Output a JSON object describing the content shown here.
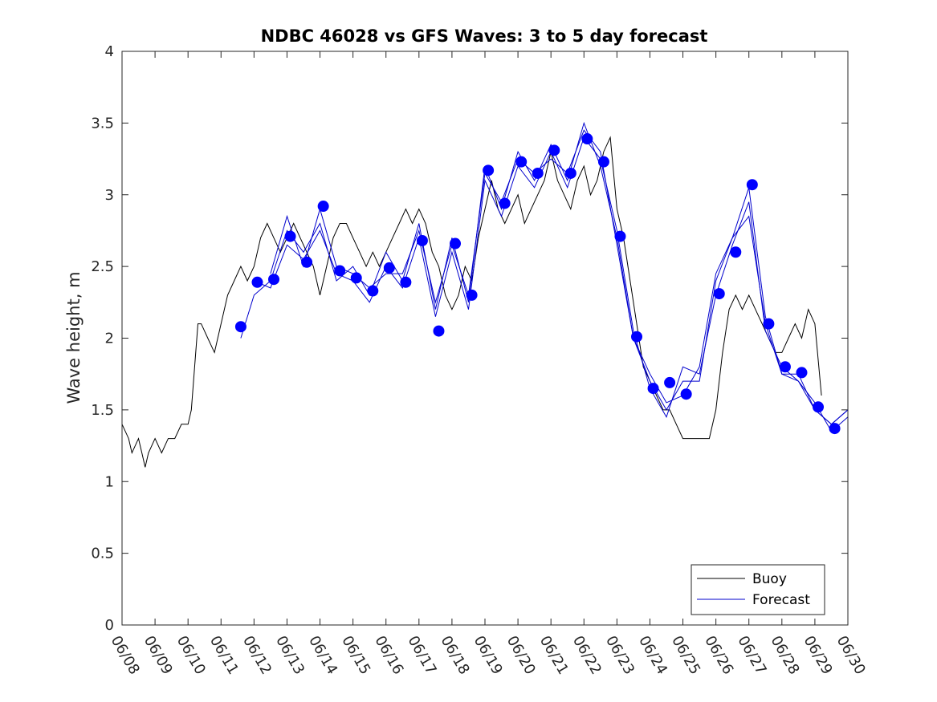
{
  "chart_data": {
    "type": "line",
    "title": "NDBC 46028 vs GFS Waves: 3 to 5 day forecast",
    "xlabel": "",
    "ylabel": "Wave height, m",
    "xlim": [
      "06/08",
      "06/30"
    ],
    "ylim": [
      0,
      4
    ],
    "x_tick_labels": [
      "06/08",
      "06/09",
      "06/10",
      "06/11",
      "06/12",
      "06/13",
      "06/14",
      "06/15",
      "06/16",
      "06/17",
      "06/18",
      "06/19",
      "06/20",
      "06/21",
      "06/22",
      "06/23",
      "06/24",
      "06/25",
      "06/26",
      "06/27",
      "06/28",
      "06/29",
      "06/30"
    ],
    "y_tick_labels": [
      "0",
      "0.5",
      "1",
      "1.5",
      "2",
      "2.5",
      "3",
      "3.5",
      "4"
    ],
    "grid": false,
    "legend_position": "bottom-right",
    "colors": {
      "buoy": "#000000",
      "forecast": "#0000cd",
      "markers": "#0000ff"
    },
    "series": [
      {
        "name": "Buoy",
        "x_unit": "day of June",
        "points": [
          [
            8.0,
            1.4
          ],
          [
            8.2,
            1.3
          ],
          [
            8.3,
            1.2
          ],
          [
            8.5,
            1.3
          ],
          [
            8.6,
            1.2
          ],
          [
            8.7,
            1.1
          ],
          [
            8.8,
            1.2
          ],
          [
            9.0,
            1.3
          ],
          [
            9.2,
            1.2
          ],
          [
            9.4,
            1.3
          ],
          [
            9.6,
            1.3
          ],
          [
            9.8,
            1.4
          ],
          [
            10.0,
            1.4
          ],
          [
            10.1,
            1.5
          ],
          [
            10.2,
            1.8
          ],
          [
            10.3,
            2.1
          ],
          [
            10.4,
            2.1
          ],
          [
            10.6,
            2.0
          ],
          [
            10.8,
            1.9
          ],
          [
            11.0,
            2.1
          ],
          [
            11.2,
            2.3
          ],
          [
            11.4,
            2.4
          ],
          [
            11.6,
            2.5
          ],
          [
            11.8,
            2.4
          ],
          [
            12.0,
            2.5
          ],
          [
            12.2,
            2.7
          ],
          [
            12.4,
            2.8
          ],
          [
            12.6,
            2.7
          ],
          [
            12.8,
            2.6
          ],
          [
            13.0,
            2.7
          ],
          [
            13.2,
            2.8
          ],
          [
            13.4,
            2.7
          ],
          [
            13.6,
            2.6
          ],
          [
            13.8,
            2.5
          ],
          [
            14.0,
            2.3
          ],
          [
            14.2,
            2.5
          ],
          [
            14.4,
            2.7
          ],
          [
            14.6,
            2.8
          ],
          [
            14.8,
            2.8
          ],
          [
            15.0,
            2.7
          ],
          [
            15.2,
            2.6
          ],
          [
            15.4,
            2.5
          ],
          [
            15.6,
            2.6
          ],
          [
            15.8,
            2.5
          ],
          [
            16.0,
            2.6
          ],
          [
            16.2,
            2.7
          ],
          [
            16.4,
            2.8
          ],
          [
            16.6,
            2.9
          ],
          [
            16.8,
            2.8
          ],
          [
            17.0,
            2.9
          ],
          [
            17.2,
            2.8
          ],
          [
            17.4,
            2.6
          ],
          [
            17.6,
            2.5
          ],
          [
            17.8,
            2.3
          ],
          [
            18.0,
            2.2
          ],
          [
            18.2,
            2.3
          ],
          [
            18.4,
            2.5
          ],
          [
            18.6,
            2.4
          ],
          [
            18.8,
            2.7
          ],
          [
            19.0,
            2.9
          ],
          [
            19.2,
            3.1
          ],
          [
            19.4,
            2.9
          ],
          [
            19.6,
            2.8
          ],
          [
            19.8,
            2.9
          ],
          [
            20.0,
            3.0
          ],
          [
            20.2,
            2.8
          ],
          [
            20.4,
            2.9
          ],
          [
            20.6,
            3.0
          ],
          [
            20.8,
            3.1
          ],
          [
            21.0,
            3.3
          ],
          [
            21.2,
            3.1
          ],
          [
            21.4,
            3.0
          ],
          [
            21.6,
            2.9
          ],
          [
            21.8,
            3.1
          ],
          [
            22.0,
            3.2
          ],
          [
            22.2,
            3.0
          ],
          [
            22.4,
            3.1
          ],
          [
            22.6,
            3.3
          ],
          [
            22.8,
            3.4
          ],
          [
            23.0,
            2.9
          ],
          [
            23.2,
            2.7
          ],
          [
            23.4,
            2.4
          ],
          [
            23.6,
            2.1
          ],
          [
            23.8,
            1.8
          ],
          [
            24.0,
            1.7
          ],
          [
            24.2,
            1.6
          ],
          [
            24.4,
            1.5
          ],
          [
            24.6,
            1.5
          ],
          [
            24.8,
            1.4
          ],
          [
            25.0,
            1.3
          ],
          [
            25.2,
            1.3
          ],
          [
            25.4,
            1.3
          ],
          [
            25.6,
            1.3
          ],
          [
            25.8,
            1.3
          ],
          [
            26.0,
            1.5
          ],
          [
            26.2,
            1.9
          ],
          [
            26.4,
            2.2
          ],
          [
            26.6,
            2.3
          ],
          [
            26.8,
            2.2
          ],
          [
            27.0,
            2.3
          ],
          [
            27.2,
            2.2
          ],
          [
            27.4,
            2.1
          ],
          [
            27.6,
            2.0
          ],
          [
            27.8,
            1.9
          ],
          [
            28.0,
            1.9
          ],
          [
            28.2,
            2.0
          ],
          [
            28.4,
            2.1
          ],
          [
            28.6,
            2.0
          ],
          [
            28.8,
            2.2
          ],
          [
            29.0,
            2.1
          ],
          [
            29.2,
            1.6
          ]
        ]
      },
      {
        "name": "Forecast",
        "x_unit": "day of June",
        "runs": [
          [
            [
              11.6,
              2.0
            ],
            [
              12.0,
              2.3
            ],
            [
              12.5,
              2.4
            ],
            [
              13.0,
              2.75
            ],
            [
              13.5,
              2.6
            ],
            [
              14.0,
              2.8
            ],
            [
              14.5,
              2.4
            ],
            [
              15.0,
              2.5
            ],
            [
              15.5,
              2.3
            ],
            [
              16.0,
              2.6
            ],
            [
              16.5,
              2.4
            ],
            [
              17.0,
              2.8
            ],
            [
              17.5,
              2.2
            ],
            [
              18.0,
              2.7
            ],
            [
              18.5,
              2.25
            ],
            [
              19.0,
              3.2
            ],
            [
              19.5,
              2.9
            ],
            [
              20.0,
              3.3
            ],
            [
              20.5,
              3.1
            ],
            [
              21.0,
              3.35
            ],
            [
              21.5,
              3.1
            ],
            [
              22.0,
              3.5
            ],
            [
              22.5,
              3.2
            ],
            [
              23.0,
              2.7
            ],
            [
              23.5,
              2.0
            ],
            [
              24.0,
              1.7
            ],
            [
              24.5,
              1.5
            ],
            [
              25.0,
              1.7
            ],
            [
              25.5,
              1.7
            ],
            [
              26.0,
              2.4
            ],
            [
              26.5,
              2.7
            ],
            [
              27.0,
              2.85
            ],
            [
              27.5,
              2.1
            ],
            [
              28.0,
              1.75
            ],
            [
              28.5,
              1.7
            ],
            [
              29.0,
              1.5
            ],
            [
              29.5,
              1.4
            ],
            [
              30.0,
              1.5
            ]
          ],
          [
            [
              12.0,
              2.4
            ],
            [
              12.5,
              2.35
            ],
            [
              13.0,
              2.65
            ],
            [
              13.5,
              2.55
            ],
            [
              14.0,
              2.75
            ],
            [
              14.5,
              2.45
            ],
            [
              15.0,
              2.4
            ],
            [
              15.5,
              2.25
            ],
            [
              16.0,
              2.5
            ],
            [
              16.5,
              2.35
            ],
            [
              17.0,
              2.7
            ],
            [
              17.5,
              2.15
            ],
            [
              18.0,
              2.6
            ],
            [
              18.5,
              2.2
            ],
            [
              19.0,
              3.1
            ],
            [
              19.5,
              2.85
            ],
            [
              20.0,
              3.2
            ],
            [
              20.5,
              3.05
            ],
            [
              21.0,
              3.3
            ],
            [
              21.5,
              3.05
            ],
            [
              22.0,
              3.4
            ],
            [
              22.5,
              3.25
            ],
            [
              23.0,
              2.75
            ],
            [
              23.5,
              2.05
            ],
            [
              24.0,
              1.65
            ],
            [
              24.5,
              1.45
            ],
            [
              25.0,
              1.8
            ],
            [
              25.5,
              1.75
            ],
            [
              26.0,
              2.3
            ],
            [
              26.5,
              2.65
            ],
            [
              27.0,
              2.95
            ],
            [
              27.5,
              2.05
            ],
            [
              28.0,
              1.8
            ],
            [
              28.5,
              1.7
            ],
            [
              29.0,
              1.55
            ],
            [
              29.5,
              1.35
            ],
            [
              30.0,
              1.45
            ]
          ],
          [
            [
              12.5,
              2.45
            ],
            [
              13.0,
              2.85
            ],
            [
              13.5,
              2.5
            ],
            [
              14.0,
              2.9
            ],
            [
              14.5,
              2.5
            ],
            [
              15.0,
              2.45
            ],
            [
              15.5,
              2.35
            ],
            [
              16.0,
              2.45
            ],
            [
              16.5,
              2.45
            ],
            [
              17.0,
              2.75
            ],
            [
              17.5,
              2.25
            ],
            [
              18.0,
              2.65
            ],
            [
              18.5,
              2.3
            ],
            [
              19.0,
              3.15
            ],
            [
              19.5,
              2.95
            ],
            [
              20.0,
              3.25
            ],
            [
              20.5,
              3.15
            ],
            [
              21.0,
              3.25
            ],
            [
              21.5,
              3.15
            ],
            [
              22.0,
              3.45
            ],
            [
              22.5,
              3.3
            ],
            [
              23.0,
              2.65
            ],
            [
              23.5,
              2.0
            ],
            [
              24.0,
              1.75
            ],
            [
              24.5,
              1.55
            ],
            [
              25.0,
              1.6
            ],
            [
              25.5,
              1.8
            ],
            [
              26.0,
              2.45
            ],
            [
              26.5,
              2.7
            ],
            [
              27.0,
              3.05
            ],
            [
              27.5,
              2.15
            ],
            [
              28.0,
              1.75
            ],
            [
              28.5,
              1.75
            ],
            [
              29.0,
              1.5
            ],
            [
              29.5,
              1.4
            ],
            [
              30.0,
              1.5
            ]
          ]
        ]
      }
    ],
    "markers": {
      "x": [
        11.6,
        12.1,
        12.6,
        13.1,
        13.6,
        14.1,
        14.6,
        15.1,
        15.6,
        16.1,
        16.6,
        17.1,
        17.6,
        18.1,
        18.6,
        19.1,
        19.6,
        20.1,
        20.6,
        21.1,
        21.6,
        22.1,
        22.6,
        23.1,
        23.6,
        24.1,
        24.6,
        25.1,
        26.1,
        26.6,
        27.1,
        27.6,
        28.1,
        28.6,
        29.1,
        29.6
      ],
      "y": [
        2.08,
        2.39,
        2.41,
        2.71,
        2.53,
        2.92,
        2.47,
        2.42,
        2.33,
        2.49,
        2.39,
        2.68,
        2.05,
        2.66,
        2.3,
        3.17,
        2.94,
        3.23,
        3.15,
        3.31,
        3.15,
        3.39,
        3.23,
        2.71,
        2.01,
        1.65,
        1.69,
        1.61,
        2.31,
        2.6,
        3.07,
        2.1,
        1.8,
        1.76,
        1.52,
        1.37
      ]
    }
  }
}
